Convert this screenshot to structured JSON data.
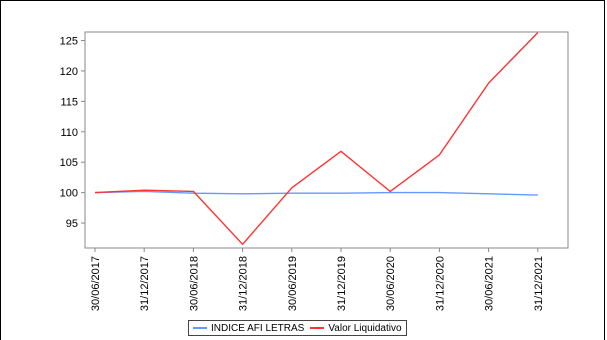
{
  "chart_data": {
    "type": "line",
    "x": [
      "30/06/2017",
      "31/12/2017",
      "30/06/2018",
      "31/12/2018",
      "30/06/2019",
      "31/12/2019",
      "30/06/2020",
      "31/12/2020",
      "30/06/2021",
      "31/12/2021"
    ],
    "series": [
      {
        "name": "INDICE AFI LETRAS",
        "color": "#6699ff",
        "values": [
          100.0,
          100.2,
          99.9,
          99.8,
          99.9,
          99.9,
          100.0,
          100.0,
          99.8,
          99.6
        ]
      },
      {
        "name": "Valor Liquidativo",
        "color": "#ff3333",
        "values": [
          100.0,
          100.4,
          100.2,
          91.5,
          100.8,
          106.8,
          100.2,
          106.2,
          118.0,
          126.3
        ]
      }
    ],
    "yticks": [
      95,
      100,
      105,
      110,
      115,
      120,
      125
    ],
    "ylim": [
      90.9,
      126.4
    ],
    "grid": false,
    "legend_position": "bottom"
  }
}
